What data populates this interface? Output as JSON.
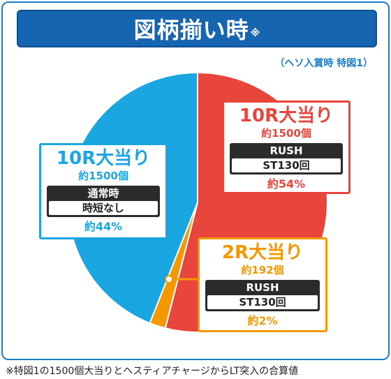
{
  "title": "図柄揃い時",
  "title_mark": "※",
  "subnote": "（ヘソ入賞時 特図1）",
  "footnote": "※特図1の1500個大当りとヘスティアチャージからLT突入の合算値",
  "colors": {
    "red": "#e8453c",
    "blue": "#1aa6e0",
    "orange": "#f39800",
    "frame": "#1a7fc9"
  },
  "chart_data": {
    "type": "pie",
    "slices": [
      {
        "name": "10R大当り",
        "payout": "約1500個",
        "mode": "RUSH",
        "detail": "ST130回",
        "percent": "約54%",
        "value": 54,
        "color": "#e8453c"
      },
      {
        "name": "2R大当り",
        "payout": "約192個",
        "mode": "RUSH",
        "detail": "ST130回",
        "percent": "約2%",
        "value": 2,
        "color": "#f39800"
      },
      {
        "name": "10R大当り",
        "payout": "約1500個",
        "mode": "通常時",
        "detail": "時短なし",
        "percent": "約44%",
        "value": 44,
        "color": "#1aa6e0"
      }
    ]
  }
}
